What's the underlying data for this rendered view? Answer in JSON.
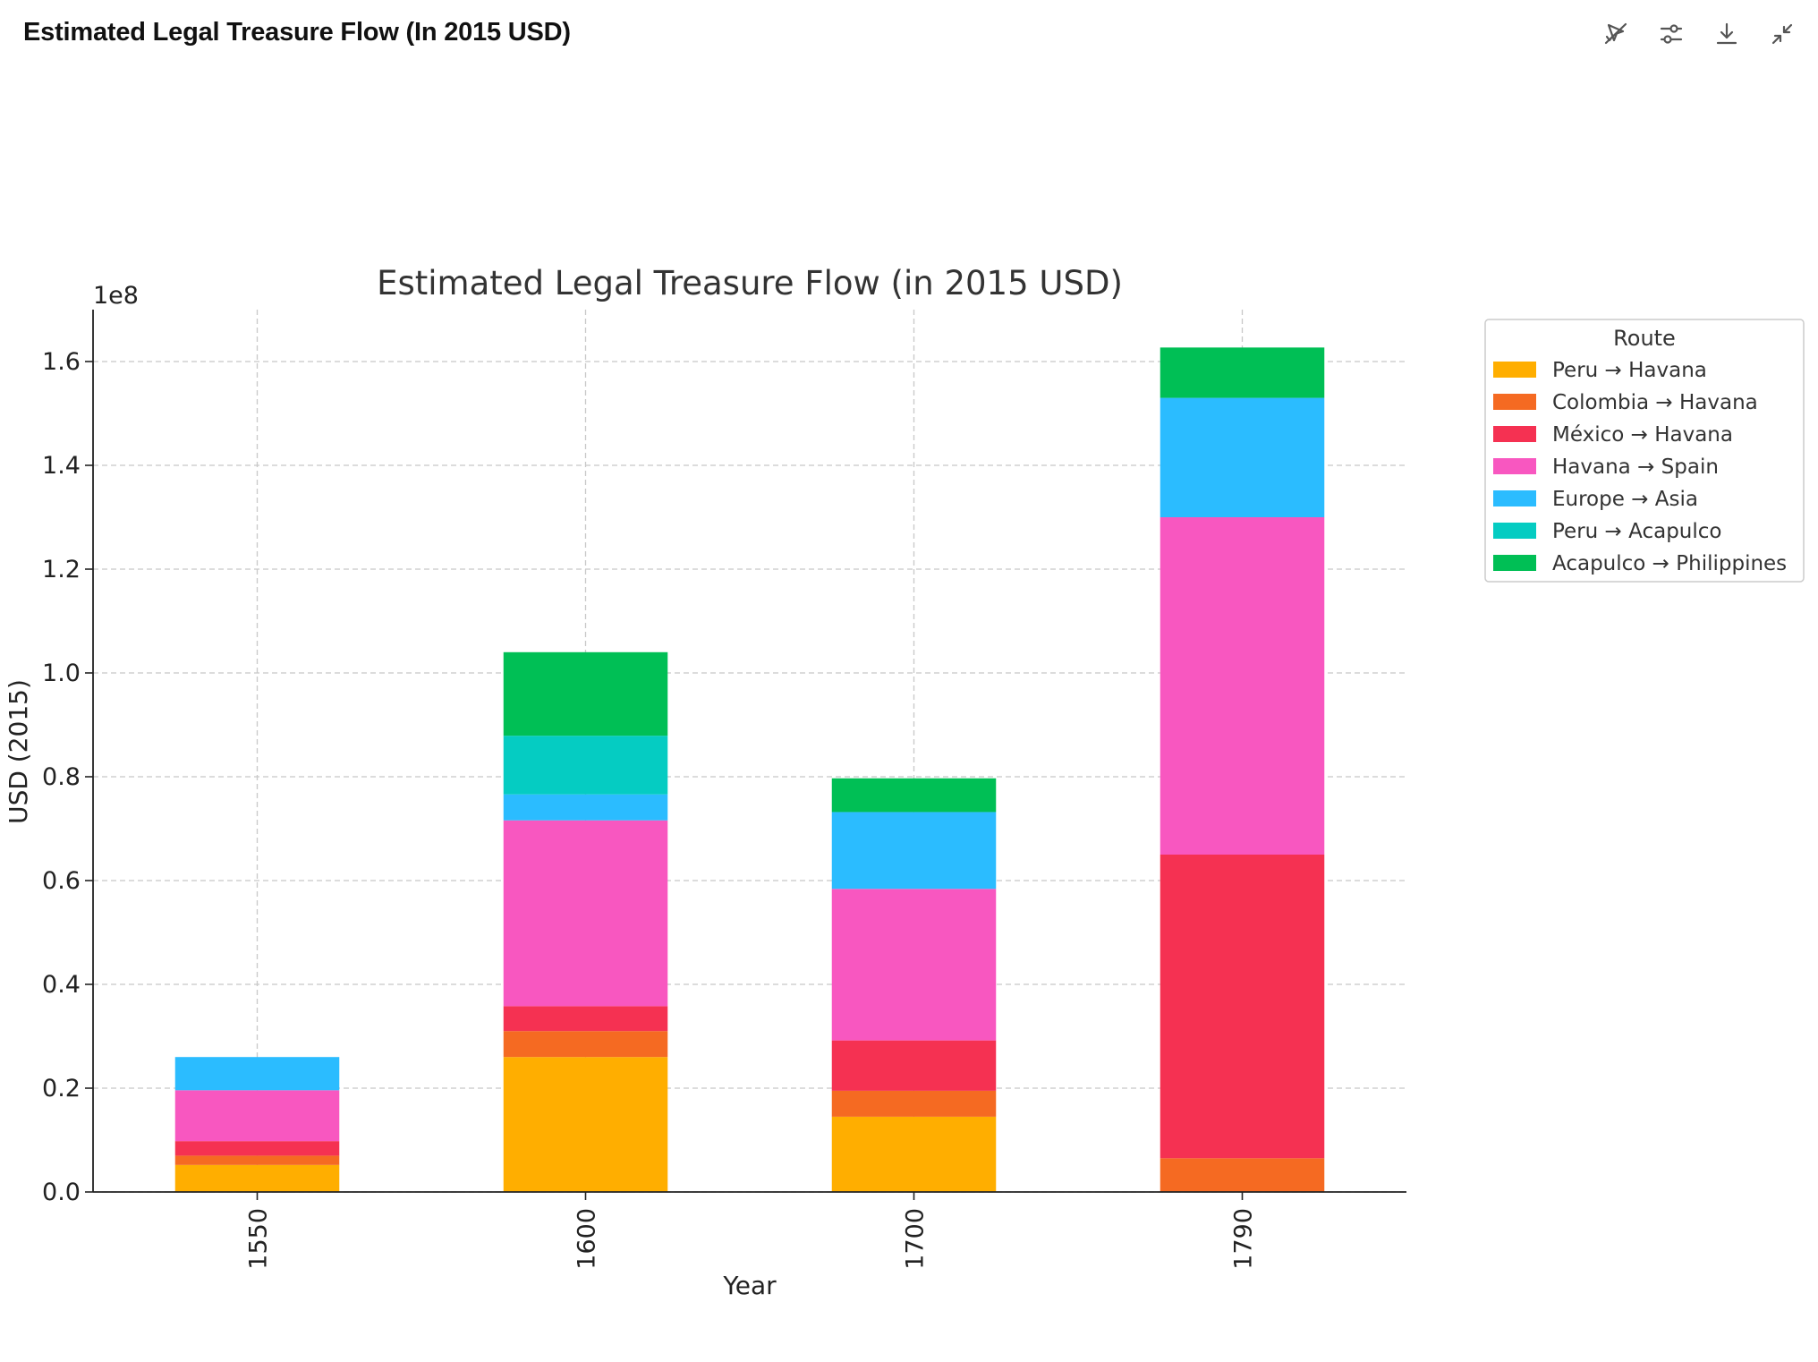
{
  "header": {
    "title": "Estimated Legal Treasure Flow (In 2015 USD)"
  },
  "toolbar": {
    "buttons": [
      {
        "name": "interactive-toggle-button",
        "icon": "chart-interactive-off-icon"
      },
      {
        "name": "customize-button",
        "icon": "sliders-icon"
      },
      {
        "name": "download-button",
        "icon": "download-icon"
      },
      {
        "name": "collapse-button",
        "icon": "collapse-arrows-icon"
      }
    ]
  },
  "chart_data": {
    "type": "bar",
    "stacked": true,
    "title": "Estimated Legal Treasure Flow (in 2015 USD)",
    "xlabel": "Year",
    "ylabel": "USD (2015)",
    "y_offset_text": "1e8",
    "categories": [
      "1550",
      "1600",
      "1700",
      "1790"
    ],
    "ylim": [
      0,
      1.7
    ],
    "yticks": [
      0.0,
      0.2,
      0.4,
      0.6,
      0.8,
      1.0,
      1.2,
      1.4,
      1.6
    ],
    "ytick_labels": [
      "0.0",
      "0.2",
      "0.4",
      "0.6",
      "0.8",
      "1.0",
      "1.2",
      "1.4",
      "1.6"
    ],
    "grid": true,
    "legend_title": "Route",
    "legend_position": "outside-right-top",
    "series": [
      {
        "name": "Peru → Havana",
        "color": "#FFAE00",
        "values": [
          0.052,
          0.26,
          0.145,
          0.0
        ]
      },
      {
        "name": "Colombia → Havana",
        "color": "#F56A22",
        "values": [
          0.018,
          0.05,
          0.05,
          0.065
        ]
      },
      {
        "name": "México → Havana",
        "color": "#F53152",
        "values": [
          0.028,
          0.048,
          0.097,
          0.585
        ]
      },
      {
        "name": "Havana → Spain",
        "color": "#F857C0",
        "values": [
          0.098,
          0.358,
          0.292,
          0.65
        ]
      },
      {
        "name": "Europe → Asia",
        "color": "#2BBCFF",
        "values": [
          0.064,
          0.05,
          0.148,
          0.23
        ]
      },
      {
        "name": "Peru → Acapulco",
        "color": "#05CCC2",
        "values": [
          0.0,
          0.113,
          0.0,
          0.0
        ]
      },
      {
        "name": "Acapulco → Philippines",
        "color": "#00BF55",
        "values": [
          0.0,
          0.161,
          0.065,
          0.097
        ]
      }
    ]
  }
}
